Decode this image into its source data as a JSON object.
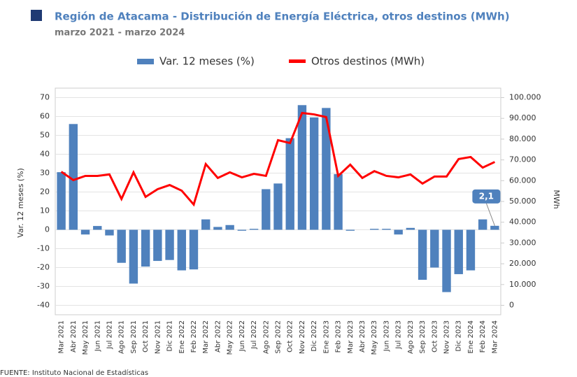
{
  "chart_data": {
    "type": "bar-line",
    "title": "Región de Atacama - Distribución de Energía Eléctrica, otros destinos (MWh)",
    "subtitle": "marzo 2021 - marzo 2024",
    "source": "FUENTE: Instituto Nacional de Estadísticas",
    "y_label": "Var. 12 meses (%)",
    "y2_label": "MWh",
    "categories": [
      "Mar 2021",
      "Abr 2021",
      "May 2021",
      "Jun 2021",
      "Jul 2021",
      "Ago 2021",
      "Sep 2021",
      "Oct 2021",
      "Nov 2021",
      "Dic 2021",
      "Ene 2022",
      "Feb 2022",
      "Mar 2022",
      "Abr 2022",
      "May 2022",
      "Jun 2022",
      "Jul 2022",
      "Ago 2022",
      "Sep 2022",
      "Oct 2022",
      "Nov 2022",
      "Dic 2022",
      "Ene 2023",
      "Feb 2023",
      "Mar 2023",
      "Abr 2023",
      "May 2023",
      "Jun 2023",
      "Jul 2023",
      "Ago 2023",
      "Sep 2023",
      "Oct 2023",
      "Nov 2023",
      "Dic 2023",
      "Ene 2024",
      "Feb 2024",
      "Mar 2024"
    ],
    "series": [
      {
        "name": "Var. 12 meses (%)",
        "type": "bar",
        "color": "#4f81bd",
        "values": [
          30.5,
          56,
          -2.5,
          2,
          -3,
          -17.5,
          -28.5,
          -19.5,
          -16.5,
          -16,
          -21.5,
          -21,
          5.5,
          1.5,
          2.5,
          -0.5,
          0.5,
          21.5,
          24.5,
          48.5,
          66,
          59.5,
          64.5,
          29.5,
          -0.5,
          0,
          0.5,
          0.5,
          -2.5,
          1,
          -26.5,
          -20,
          -33,
          -23.5,
          -21.5,
          5.5,
          2.1
        ],
        "value_labels": [
          null,
          null,
          null,
          null,
          null,
          null,
          null,
          null,
          null,
          null,
          null,
          null,
          null,
          null,
          null,
          null,
          null,
          null,
          null,
          null,
          null,
          null,
          null,
          null,
          null,
          null,
          null,
          null,
          null,
          null,
          null,
          null,
          null,
          null,
          null,
          null,
          "2,1"
        ]
      },
      {
        "name": "Otros destinos (MWh)",
        "type": "line",
        "axis": "y2",
        "color": "#ff0000",
        "values": [
          64300,
          60300,
          62300,
          62300,
          63000,
          51200,
          64000,
          52200,
          55900,
          57900,
          55200,
          48500,
          68000,
          61300,
          64000,
          61600,
          63300,
          62300,
          79500,
          78100,
          92600,
          91900,
          90600,
          62300,
          67700,
          61300,
          64600,
          62300,
          61600,
          63000,
          58600,
          62000,
          62000,
          70400,
          71400,
          66300,
          69000
        ]
      }
    ],
    "ylim": [
      -45,
      75
    ],
    "yticks": [
      -40,
      -30,
      -20,
      -10,
      0,
      10,
      20,
      30,
      40,
      50,
      60,
      70
    ],
    "y2lim": [
      -4545,
      104545
    ],
    "y2ticks": [
      0,
      {
        "value": 10000,
        "label": "10.000"
      },
      {
        "value": 20000,
        "label": "20.000"
      },
      {
        "value": 30000,
        "label": "30.000"
      },
      {
        "value": 40000,
        "label": "40.000"
      },
      {
        "value": 50000,
        "label": "50.000"
      },
      {
        "value": 60000,
        "label": "60.000"
      },
      {
        "value": 70000,
        "label": "70.000"
      },
      {
        "value": 80000,
        "label": "80.000"
      },
      {
        "value": 90000,
        "label": "90.000"
      },
      {
        "value": 100000,
        "label": "100.000"
      }
    ],
    "grid": true
  }
}
